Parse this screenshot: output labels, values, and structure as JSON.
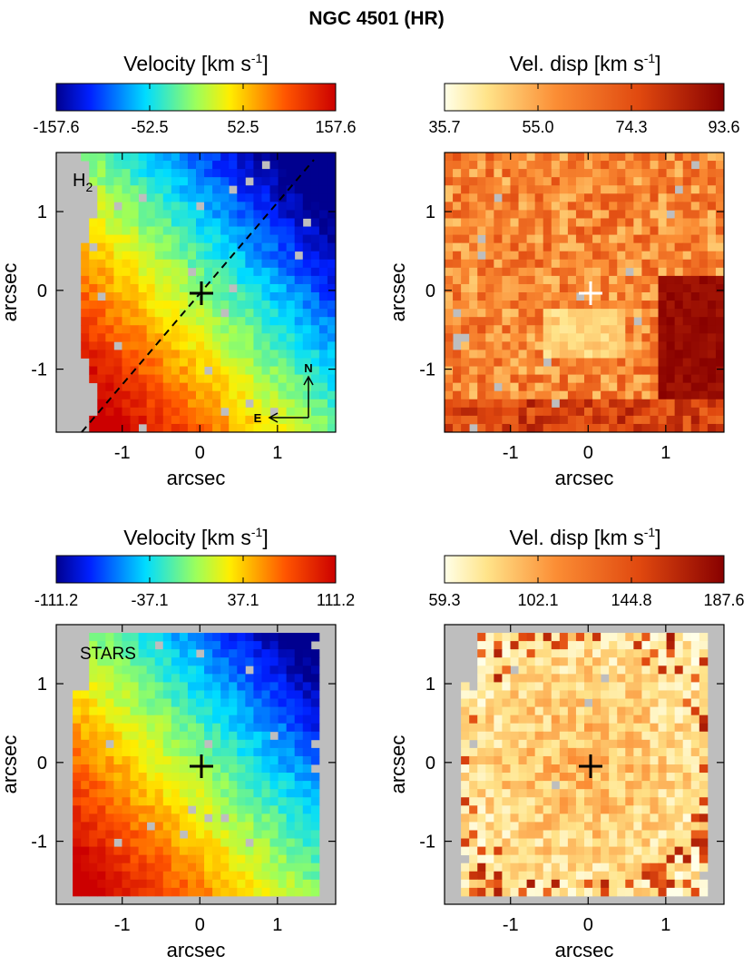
{
  "figure_title": "NGC 4501 (HR)",
  "chart_data": [
    {
      "type": "heatmap",
      "panel": "gas-velocity",
      "colorbar_title": "Velocity  [km s",
      "colorbar_unit_exp": "-1",
      "colorbar_unit_close": "]",
      "colormap": "rainbow",
      "colorbar_ticks": [
        "-157.6",
        "-52.5",
        "52.5",
        "157.6"
      ],
      "vmin": -157.6,
      "vmax": 157.6,
      "label": "H",
      "label_sub": "2",
      "xlabel": "arcsec",
      "ylabel": "arcsec",
      "xticks": [
        "-1",
        "0",
        "1"
      ],
      "yticks": [
        "1",
        "0",
        "-1"
      ],
      "xlim": [
        -1.85,
        1.75
      ],
      "ylim": [
        -1.8,
        1.75
      ],
      "center_marker": "plus",
      "marker_color": "#000000",
      "major_axis_line": true,
      "compass": {
        "north": "N",
        "east": "E"
      },
      "gradient_direction": [
        0.75,
        0.65
      ],
      "rotation_amplitude": 0.9
    },
    {
      "type": "heatmap",
      "panel": "gas-dispersion",
      "colorbar_title": "Vel. disp  [km s",
      "colorbar_unit_exp": "-1",
      "colorbar_unit_close": "]",
      "colormap": "heat",
      "colorbar_ticks": [
        "35.7",
        "55.0",
        "74.3",
        "93.6"
      ],
      "vmin": 35.7,
      "vmax": 93.6,
      "label": "",
      "label_sub": "",
      "xlabel": "arcsec",
      "ylabel": "arcsec",
      "xticks": [
        "-1",
        "0",
        "1"
      ],
      "yticks": [
        "1",
        "0",
        "-1"
      ],
      "xlim": [
        -1.85,
        1.75
      ],
      "ylim": [
        -1.8,
        1.75
      ],
      "center_marker": "plus",
      "marker_color": "#ffffff",
      "major_axis_line": false
    },
    {
      "type": "heatmap",
      "panel": "stellar-velocity",
      "colorbar_title": "Velocity  [km s",
      "colorbar_unit_exp": "-1",
      "colorbar_unit_close": "]",
      "colormap": "rainbow",
      "colorbar_ticks": [
        "-111.2",
        "-37.1",
        "37.1",
        "111.2"
      ],
      "vmin": -111.2,
      "vmax": 111.2,
      "label": "STARS",
      "label_sub": "",
      "xlabel": "arcsec",
      "ylabel": "arcsec",
      "xticks": [
        "-1",
        "0",
        "1"
      ],
      "yticks": [
        "1",
        "0",
        "-1"
      ],
      "xlim": [
        -1.85,
        1.75
      ],
      "ylim": [
        -1.8,
        1.75
      ],
      "center_marker": "plus",
      "marker_color": "#000000",
      "major_axis_line": false,
      "gradient_direction": [
        0.75,
        0.65
      ],
      "rotation_amplitude": 0.85
    },
    {
      "type": "heatmap",
      "panel": "stellar-dispersion",
      "colorbar_title": "Vel. disp  [km s",
      "colorbar_unit_exp": "-1",
      "colorbar_unit_close": "]",
      "colormap": "heat",
      "colorbar_ticks": [
        "59.3",
        "102.1",
        "144.8",
        "187.6"
      ],
      "vmin": 59.3,
      "vmax": 187.6,
      "label": "",
      "label_sub": "",
      "xlabel": "arcsec",
      "ylabel": "arcsec",
      "xticks": [
        "-1",
        "0",
        "1"
      ],
      "yticks": [
        "1",
        "0",
        "-1"
      ],
      "xlim": [
        -1.85,
        1.75
      ],
      "ylim": [
        -1.8,
        1.75
      ],
      "center_marker": "plus",
      "marker_color": "#000000",
      "major_axis_line": false
    }
  ],
  "colors": {
    "no_data": "#bebebe",
    "axis": "#000000"
  }
}
